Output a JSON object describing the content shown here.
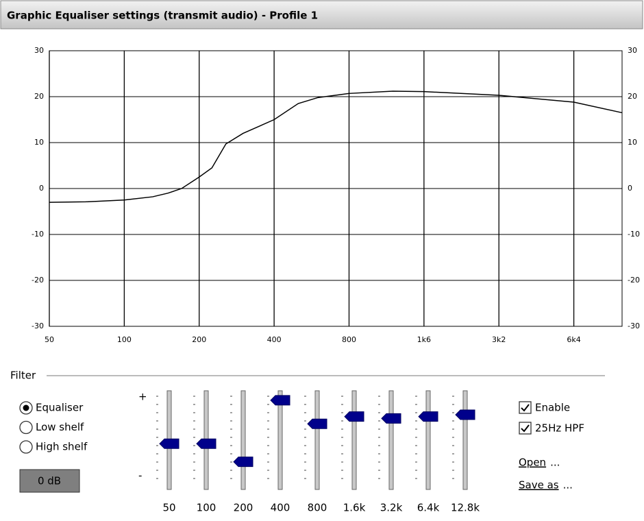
{
  "header": {
    "title": "Graphic Equaliser settings (transmit audio) - Profile 1"
  },
  "chart_data": {
    "type": "line",
    "x": [
      50,
      70,
      100,
      130,
      150,
      170,
      200,
      225,
      256,
      300,
      400,
      500,
      600,
      800,
      1200,
      1600,
      3200,
      6400,
      10000
    ],
    "series": [
      {
        "color": "#000000",
        "values": [
          -3,
          -2.9,
          -2.5,
          -1.8,
          -1,
          0,
          2.5,
          4.5,
          9.7,
          12,
          15,
          18.5,
          19.8,
          20.7,
          21.2,
          21.1,
          20.3,
          18.8,
          16.5
        ]
      }
    ],
    "xlim": [
      50,
      10000
    ],
    "xscale": "log",
    "xticks": [
      50,
      100,
      200,
      400,
      800,
      {
        "value": 1600,
        "label": "1k6"
      },
      {
        "value": 3200,
        "label": "3k2"
      },
      {
        "value": 6400,
        "label": "6k4"
      }
    ],
    "ylim": [
      -30,
      30
    ],
    "yticks": [
      30,
      20,
      10,
      0,
      -10,
      -20,
      -30
    ],
    "grid": true
  },
  "filter": {
    "title": "Filter",
    "modes": [
      {
        "label": "Equaliser",
        "selected": true
      },
      {
        "label": "Low shelf",
        "selected": false
      },
      {
        "label": "High shelf",
        "selected": false
      }
    ],
    "gain_button": "0 dB",
    "plus": "+",
    "minus": "-",
    "sliders": {
      "labels": [
        "50",
        "100",
        "200",
        "400",
        "800",
        "1.6k",
        "3.2k",
        "6.4k",
        "12.8k"
      ],
      "levels": [
        0.46,
        0.46,
        0.26,
        0.94,
        0.68,
        0.76,
        0.74,
        0.76,
        0.78
      ]
    },
    "checkboxes": [
      {
        "label": "Enable",
        "checked": true
      },
      {
        "label": "25Hz HPF",
        "checked": true
      }
    ],
    "links": [
      {
        "label": "Open",
        "suffix": "..."
      },
      {
        "label": "Save as",
        "suffix": "..."
      }
    ]
  }
}
